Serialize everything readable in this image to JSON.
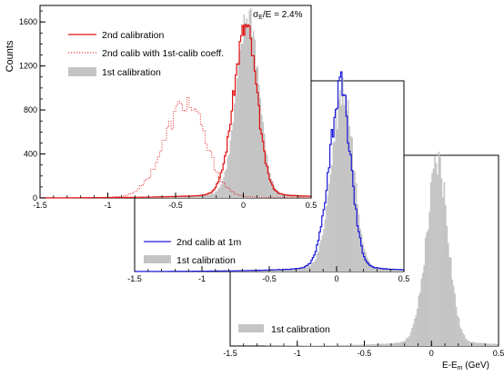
{
  "chart_data": [
    {
      "type": "area",
      "panel": "third-back",
      "xlabel": "E-E_m (GeV)",
      "xlabel_main": "E-E",
      "xlabel_sub": "m",
      "xlabel_tail": " (GeV)",
      "xlim": [
        -1.5,
        0.5
      ],
      "x_ticks": [
        "-1.5",
        "-1",
        "-0.5",
        "0",
        "0.5"
      ],
      "legend": [
        {
          "label": "1st calibration",
          "style": "filled-gray"
        }
      ],
      "legend_position": "bottom-left",
      "series": [
        {
          "name": "1st calibration",
          "kind": "filled-histogram",
          "color": "#c4c4c4",
          "center": 0.05,
          "peak": 1.0,
          "sigma_left": 0.085,
          "sigma_right": 0.075,
          "tail": 0.04
        }
      ]
    },
    {
      "type": "area",
      "panel": "second-middle",
      "xlim": [
        -1.5,
        0.5
      ],
      "x_ticks": [
        "-1.5",
        "-1",
        "-0.5",
        "0",
        "0.5"
      ],
      "legend": [
        {
          "label": "2nd calib at 1m",
          "style": "blue-line"
        },
        {
          "label": "1st calibration",
          "style": "filled-gray"
        }
      ],
      "legend_position": "bottom-left",
      "series": [
        {
          "name": "2nd calib at 1m",
          "kind": "step-line",
          "color": "#1a1adb",
          "center": 0.03,
          "peak": 1.0,
          "sigma_left": 0.085,
          "sigma_right": 0.075,
          "tail": 0.04
        },
        {
          "name": "1st calibration",
          "kind": "filled-histogram",
          "color": "#c4c4c4",
          "center": 0.05,
          "peak": 1.0,
          "sigma_left": 0.085,
          "sigma_right": 0.075,
          "tail": 0.04
        }
      ]
    },
    {
      "type": "area",
      "panel": "first-front",
      "ylabel": "Counts",
      "annotation": {
        "main": "σ",
        "sub": "E",
        "tail": "/E = 2.4%"
      },
      "xlim": [
        -1.5,
        0.5
      ],
      "ylim": [
        0,
        1750
      ],
      "x_ticks": [
        "-1.5",
        "-1",
        "-0.5",
        "0",
        "0.5"
      ],
      "y_ticks": [
        "0",
        "400",
        "800",
        "1200",
        "1600"
      ],
      "legend": [
        {
          "label": "2nd calibration",
          "style": "red-line"
        },
        {
          "label": "2nd calib with 1st-calib coeff.",
          "style": "red-dotted"
        },
        {
          "label": "1st calibration",
          "style": "filled-gray"
        }
      ],
      "legend_position": "top-left",
      "series": [
        {
          "name": "2nd calibration",
          "kind": "step-line",
          "color": "#e01010",
          "center": 0.02,
          "peak": 1500,
          "sigma_left": 0.09,
          "sigma_right": 0.08,
          "tail": 0.04
        },
        {
          "name": "2nd calib with 1st-calib coeff.",
          "kind": "dotted-line",
          "color": "#e01010",
          "center": -0.42,
          "peak": 840,
          "sigma_left": 0.16,
          "sigma_right": 0.14,
          "tail": 0.03
        },
        {
          "name": "1st calibration",
          "kind": "filled-histogram",
          "color": "#c4c4c4",
          "center": 0.04,
          "peak": 1610,
          "sigma_left": 0.085,
          "sigma_right": 0.075,
          "tail": 0.04
        }
      ]
    }
  ]
}
